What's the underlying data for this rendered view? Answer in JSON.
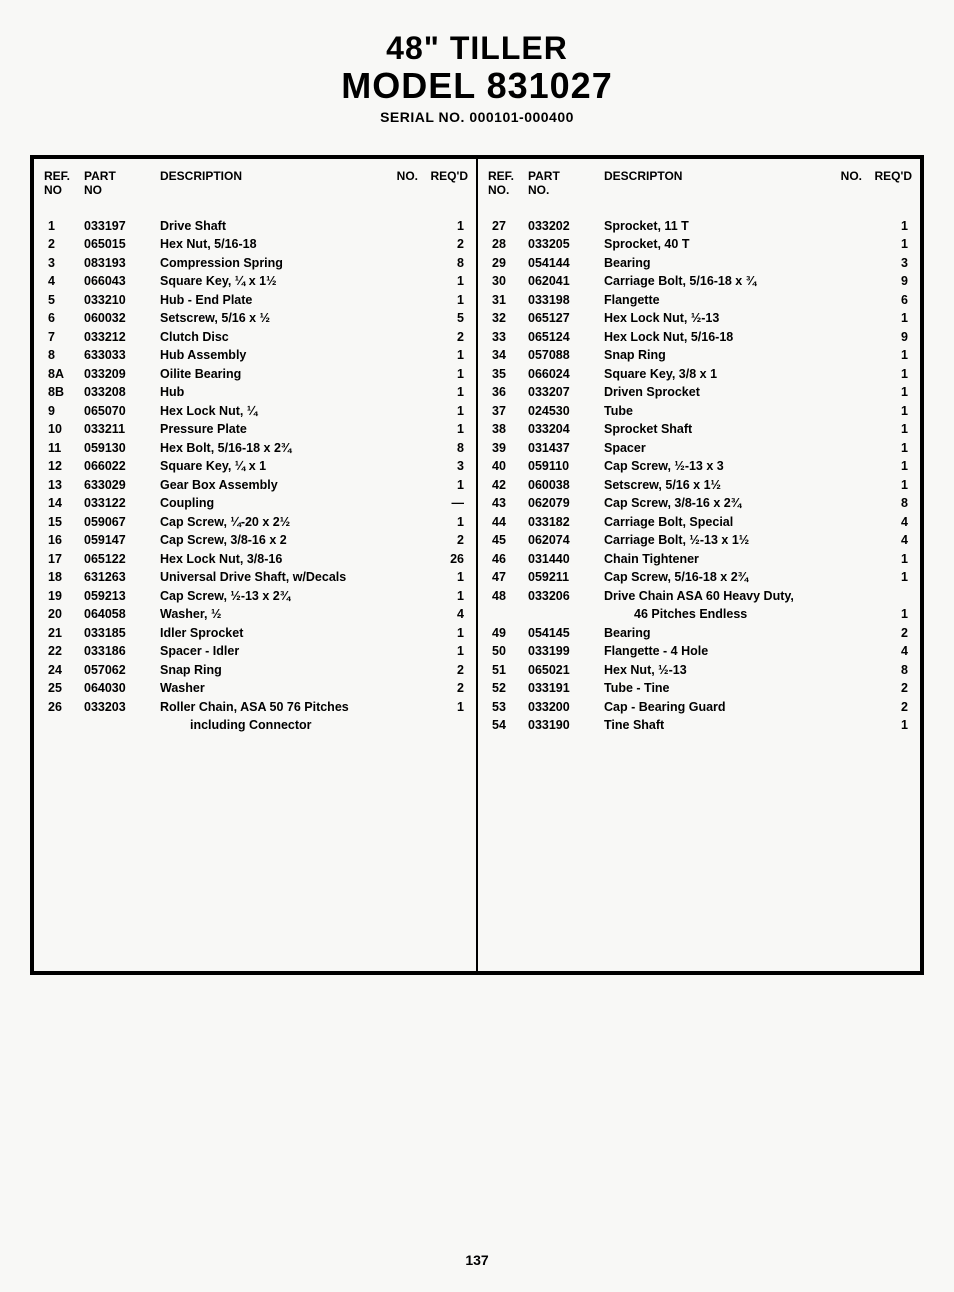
{
  "header": {
    "title1": "48\" TILLER",
    "title2": "MODEL 831027",
    "serial": "SERIAL NO. 000101-000400"
  },
  "columns": {
    "head": {
      "ref_l1": "REF.",
      "ref_l2": "NO",
      "part_l1": "PART",
      "part_l2": "NO",
      "desc": "DESCRIPTION",
      "no": "NO.",
      "reqd": "REQ'D"
    },
    "head_r": {
      "ref_l1": "REF.",
      "ref_l2": "NO.",
      "part_l1": "PART",
      "part_l2": "NO.",
      "desc": "DESCRIPTON",
      "no": "NO.",
      "reqd": "REQ'D"
    }
  },
  "left": [
    {
      "ref": "1",
      "part": "033197",
      "desc": "Drive Shaft",
      "reqd": "1"
    },
    {
      "ref": "2",
      "part": "065015",
      "desc": "Hex Nut, 5/16-18",
      "reqd": "2"
    },
    {
      "ref": "3",
      "part": "083193",
      "desc": "Compression Spring",
      "reqd": "8"
    },
    {
      "ref": "4",
      "part": "066043",
      "desc": "Square Key, ¼ x 1½",
      "reqd": "1"
    },
    {
      "ref": "5",
      "part": "033210",
      "desc": "Hub - End Plate",
      "reqd": "1"
    },
    {
      "ref": "6",
      "part": "060032",
      "desc": "Setscrew, 5/16 x ½",
      "reqd": "5"
    },
    {
      "ref": "7",
      "part": "033212",
      "desc": "Clutch Disc",
      "reqd": "2"
    },
    {
      "ref": "8",
      "part": "633033",
      "desc": "Hub Assembly",
      "reqd": "1"
    },
    {
      "ref": "8A",
      "part": "033209",
      "desc": "Oilite Bearing",
      "reqd": "1"
    },
    {
      "ref": "8B",
      "part": "033208",
      "desc": "Hub",
      "reqd": "1"
    },
    {
      "ref": "9",
      "part": "065070",
      "desc": "Hex Lock Nut, ¼",
      "reqd": "1"
    },
    {
      "ref": "10",
      "part": "033211",
      "desc": "Pressure Plate",
      "reqd": "1"
    },
    {
      "ref": "11",
      "part": "059130",
      "desc": "Hex Bolt, 5/16-18 x 2¾",
      "reqd": "8"
    },
    {
      "ref": "12",
      "part": "066022",
      "desc": "Square Key, ¼ x 1",
      "reqd": "3"
    },
    {
      "ref": "13",
      "part": "633029",
      "desc": "Gear Box Assembly",
      "reqd": "1"
    },
    {
      "ref": "14",
      "part": "033122",
      "desc": "Coupling",
      "reqd": "—"
    },
    {
      "ref": "15",
      "part": "059067",
      "desc": "Cap Screw, ¼-20 x 2½",
      "reqd": "1"
    },
    {
      "ref": "16",
      "part": "059147",
      "desc": "Cap Screw, 3/8-16 x 2",
      "reqd": "2"
    },
    {
      "ref": "17",
      "part": "065122",
      "desc": "Hex Lock Nut, 3/8-16",
      "reqd": "26"
    },
    {
      "ref": "18",
      "part": "631263",
      "desc": "Universal Drive Shaft, w/Decals",
      "reqd": "1"
    },
    {
      "ref": "19",
      "part": "059213",
      "desc": "Cap Screw, ½-13 x 2¾",
      "reqd": "1"
    },
    {
      "ref": "20",
      "part": "064058",
      "desc": "Washer, ½",
      "reqd": "4"
    },
    {
      "ref": "21",
      "part": "033185",
      "desc": "Idler Sprocket",
      "reqd": "1"
    },
    {
      "ref": "22",
      "part": "033186",
      "desc": "Spacer - Idler",
      "reqd": "1"
    },
    {
      "ref": "24",
      "part": "057062",
      "desc": "Snap Ring",
      "reqd": "2"
    },
    {
      "ref": "25",
      "part": "064030",
      "desc": "Washer",
      "reqd": "2"
    },
    {
      "ref": "26",
      "part": "033203",
      "desc": "Roller Chain, ASA 50 76 Pitches",
      "reqd": "1"
    },
    {
      "ref": "",
      "part": "",
      "desc": "including Connector",
      "reqd": "",
      "cont": true
    }
  ],
  "right": [
    {
      "ref": "27",
      "part": "033202",
      "desc": "Sprocket, 11 T",
      "reqd": "1"
    },
    {
      "ref": "28",
      "part": "033205",
      "desc": "Sprocket, 40 T",
      "reqd": "1"
    },
    {
      "ref": "29",
      "part": "054144",
      "desc": "Bearing",
      "reqd": "3"
    },
    {
      "ref": "30",
      "part": "062041",
      "desc": "Carriage Bolt, 5/16-18 x ¾",
      "reqd": "9"
    },
    {
      "ref": "31",
      "part": "033198",
      "desc": "Flangette",
      "reqd": "6"
    },
    {
      "ref": "32",
      "part": "065127",
      "desc": "Hex Lock Nut, ½-13",
      "reqd": "1"
    },
    {
      "ref": "33",
      "part": "065124",
      "desc": "Hex Lock Nut, 5/16-18",
      "reqd": "9"
    },
    {
      "ref": "34",
      "part": "057088",
      "desc": "Snap Ring",
      "reqd": "1"
    },
    {
      "ref": "35",
      "part": "066024",
      "desc": "Square Key, 3/8 x 1",
      "reqd": "1"
    },
    {
      "ref": "36",
      "part": "033207",
      "desc": "Driven Sprocket",
      "reqd": "1"
    },
    {
      "ref": "37",
      "part": "024530",
      "desc": "Tube",
      "reqd": "1"
    },
    {
      "ref": "38",
      "part": "033204",
      "desc": "Sprocket Shaft",
      "reqd": "1"
    },
    {
      "ref": "39",
      "part": "031437",
      "desc": "Spacer",
      "reqd": "1"
    },
    {
      "ref": "40",
      "part": "059110",
      "desc": "Cap Screw, ½-13 x 3",
      "reqd": "1"
    },
    {
      "ref": "42",
      "part": "060038",
      "desc": "Setscrew, 5/16 x 1½",
      "reqd": "1"
    },
    {
      "ref": "43",
      "part": "062079",
      "desc": "Cap Screw, 3/8-16 x 2¾",
      "reqd": "8"
    },
    {
      "ref": "44",
      "part": "033182",
      "desc": "Carriage Bolt, Special",
      "reqd": "4"
    },
    {
      "ref": "45",
      "part": "062074",
      "desc": "Carriage Bolt, ½-13 x 1½",
      "reqd": "4"
    },
    {
      "ref": "46",
      "part": "031440",
      "desc": "Chain Tightener",
      "reqd": "1"
    },
    {
      "ref": "47",
      "part": "059211",
      "desc": "Cap Screw, 5/16-18 x 2¾",
      "reqd": "1"
    },
    {
      "ref": "48",
      "part": "033206",
      "desc": "Drive Chain ASA 60 Heavy Duty,",
      "reqd": ""
    },
    {
      "ref": "",
      "part": "",
      "desc": "46 Pitches Endless",
      "reqd": "1",
      "cont": true
    },
    {
      "ref": "49",
      "part": "054145",
      "desc": "Bearing",
      "reqd": "2"
    },
    {
      "ref": "50",
      "part": "033199",
      "desc": "Flangette - 4 Hole",
      "reqd": "4"
    },
    {
      "ref": "51",
      "part": "065021",
      "desc": "Hex Nut, ½-13",
      "reqd": "8"
    },
    {
      "ref": "52",
      "part": "033191",
      "desc": "Tube - Tine",
      "reqd": "2"
    },
    {
      "ref": "53",
      "part": "033200",
      "desc": "Cap - Bearing Guard",
      "reqd": "2"
    },
    {
      "ref": "54",
      "part": "033190",
      "desc": "Tine Shaft",
      "reqd": "1"
    }
  ],
  "page_number": "137"
}
